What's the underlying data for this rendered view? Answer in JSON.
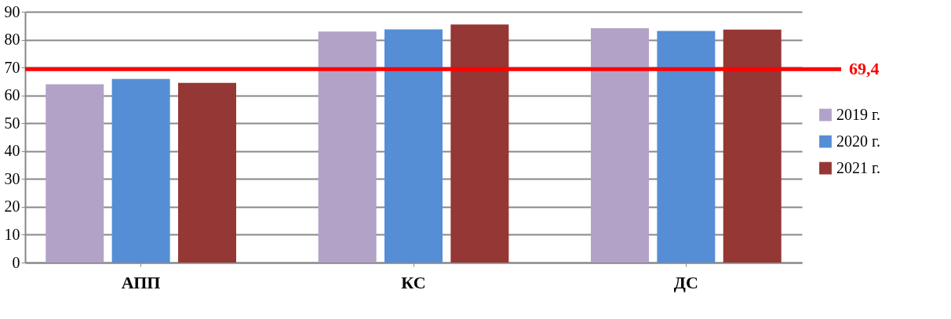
{
  "chart_data": {
    "type": "bar",
    "categories": [
      "АПП",
      "КС",
      "ДС"
    ],
    "series": [
      {
        "name": "2019 г.",
        "color": "#b3a2c7",
        "values": [
          64.0,
          82.9,
          84.1
        ]
      },
      {
        "name": "2020 г.",
        "color": "#558ed5",
        "values": [
          65.9,
          83.7,
          83.1
        ]
      },
      {
        "name": "2021 г.",
        "color": "#953735",
        "values": [
          64.5,
          85.4,
          83.6
        ]
      }
    ],
    "ylim": [
      0,
      90
    ],
    "yticks": [
      0,
      10,
      20,
      30,
      40,
      50,
      60,
      70,
      80,
      90
    ],
    "grid": "y",
    "legend": "right",
    "ref_lines": [
      {
        "axis": "y",
        "value": 69.4,
        "label": "69,4",
        "color": "#ff0000"
      }
    ]
  }
}
